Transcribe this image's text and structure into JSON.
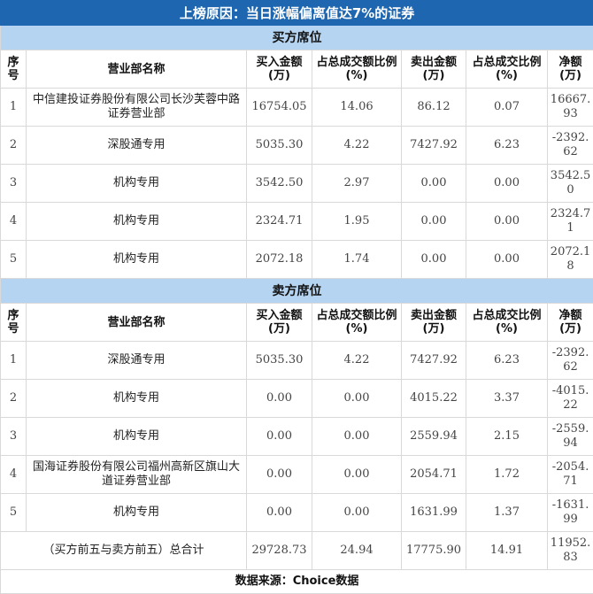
{
  "title": "上榜原因：当日涨幅偏离值达7%的证券",
  "headers": [
    "序号",
    "营业部名称",
    "买入金额(万)",
    "占总成交额比例(%)",
    "卖出金额(万)",
    "占总成交比例(%)",
    "净额(万)"
  ],
  "buy": {
    "label": "买方席位",
    "rows": [
      [
        "1",
        "中信建投证券股份有限公司长沙芙蓉中路证券营业部",
        "16754.05",
        "14.06",
        "86.12",
        "0.07",
        "16667.93"
      ],
      [
        "2",
        "深股通专用",
        "5035.30",
        "4.22",
        "7427.92",
        "6.23",
        "-2392.62"
      ],
      [
        "3",
        "机构专用",
        "3542.50",
        "2.97",
        "0.00",
        "0.00",
        "3542.50"
      ],
      [
        "4",
        "机构专用",
        "2324.71",
        "1.95",
        "0.00",
        "0.00",
        "2324.71"
      ],
      [
        "5",
        "机构专用",
        "2072.18",
        "1.74",
        "0.00",
        "0.00",
        "2072.18"
      ]
    ]
  },
  "sell": {
    "label": "卖方席位",
    "rows": [
      [
        "1",
        "深股通专用",
        "5035.30",
        "4.22",
        "7427.92",
        "6.23",
        "-2392.62"
      ],
      [
        "2",
        "机构专用",
        "0.00",
        "0.00",
        "4015.22",
        "3.37",
        "-4015.22"
      ],
      [
        "3",
        "机构专用",
        "0.00",
        "0.00",
        "2559.94",
        "2.15",
        "-2559.94"
      ],
      [
        "4",
        "国海证券股份有限公司福州高新区旗山大道证券营业部",
        "0.00",
        "0.00",
        "2054.71",
        "1.72",
        "-2054.71"
      ],
      [
        "5",
        "机构专用",
        "0.00",
        "0.00",
        "1631.99",
        "1.37",
        "-1631.99"
      ]
    ]
  },
  "total": [
    "（买方前五与卖方前五）总合计",
    "29728.73",
    "24.94",
    "17775.90",
    "14.91",
    "11952.83"
  ],
  "footer": "数据来源：Choice数据"
}
